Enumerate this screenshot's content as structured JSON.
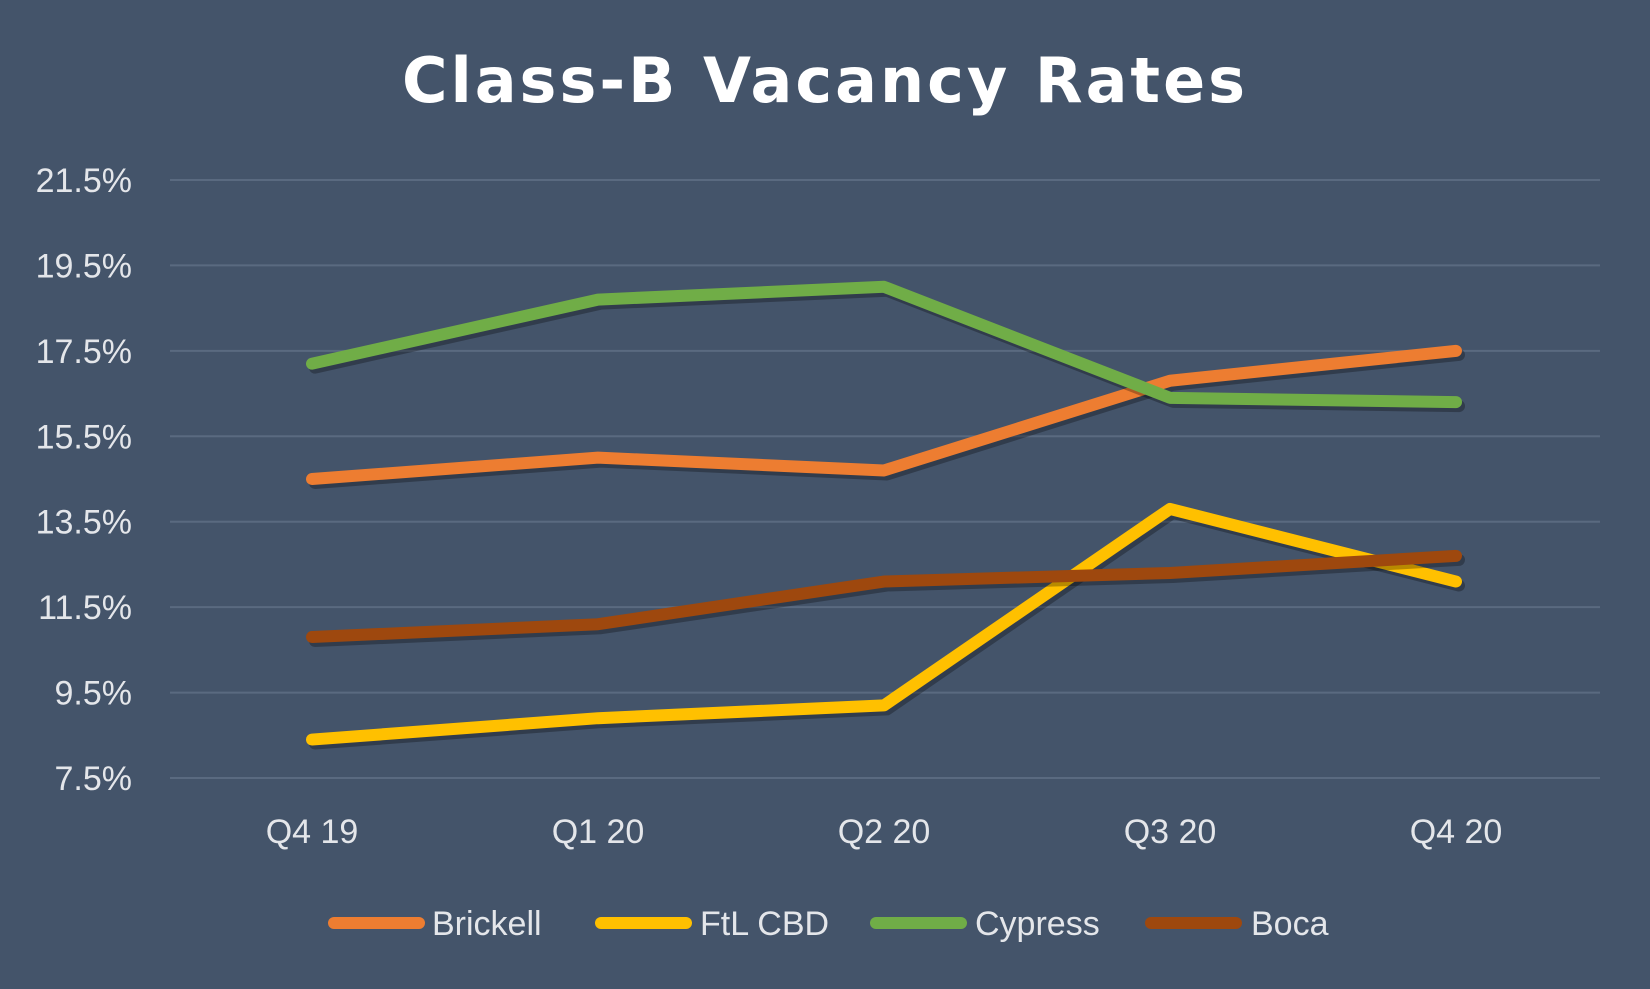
{
  "chart_data": {
    "type": "line",
    "title": "Class-B Vacancy Rates",
    "xlabel": "",
    "ylabel": "",
    "categories": [
      "Q4 19",
      "Q1 20",
      "Q2 20",
      "Q3 20",
      "Q4 20"
    ],
    "yticks": [
      "21.5%",
      "19.5%",
      "17.5%",
      "15.5%",
      "13.5%",
      "11.5%",
      "9.5%",
      "7.5%"
    ],
    "ylim": [
      7.5,
      21.5
    ],
    "grid": true,
    "legend_position": "bottom",
    "series": [
      {
        "name": "Brickell",
        "color": "#ED7D31",
        "values": [
          14.5,
          15.0,
          14.7,
          16.8,
          17.5
        ]
      },
      {
        "name": "FtL CBD",
        "color": "#FFC000",
        "values": [
          8.4,
          8.9,
          9.2,
          13.8,
          12.1
        ]
      },
      {
        "name": "Cypress",
        "color": "#70AD47",
        "values": [
          17.2,
          18.7,
          19.0,
          16.4,
          16.3
        ]
      },
      {
        "name": "Boca",
        "color": "#9E480E",
        "values": [
          10.8,
          11.1,
          12.1,
          12.3,
          12.7
        ]
      }
    ]
  }
}
